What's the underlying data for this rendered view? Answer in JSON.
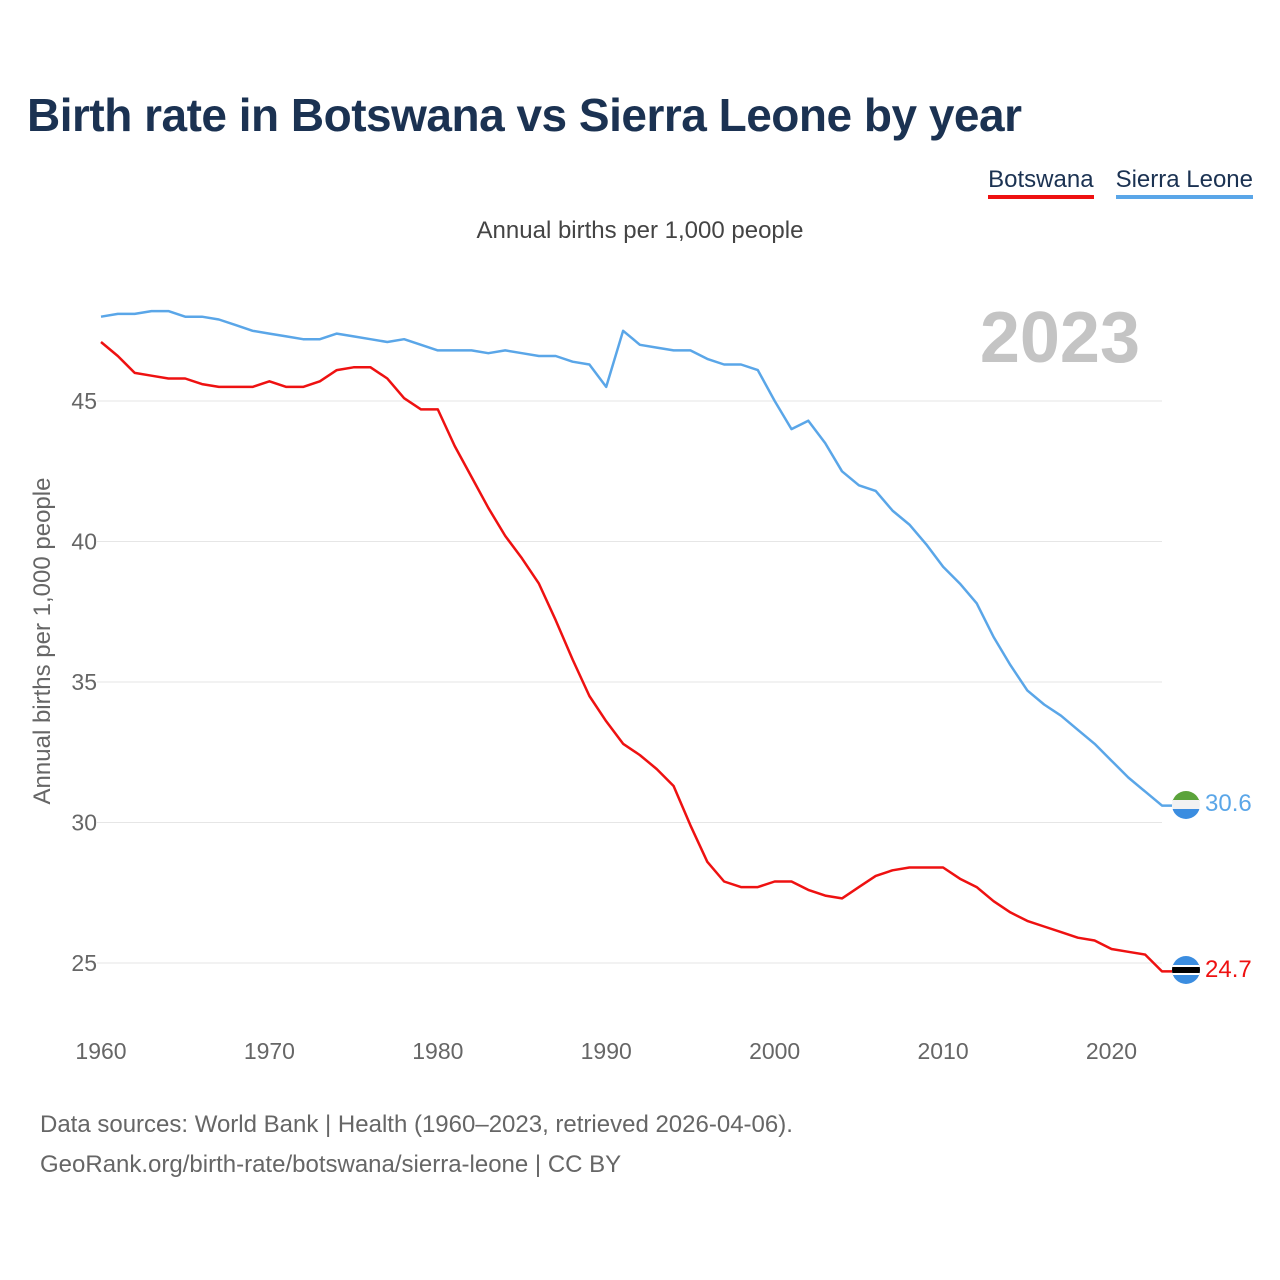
{
  "chart_data": {
    "type": "line",
    "title": "Birth rate in Botswana vs Sierra Leone by year",
    "subtitle": "Annual births per 1,000 people",
    "ylabel": "Annual births per 1,000 people",
    "xlabel": "",
    "xlim": [
      1960,
      2023
    ],
    "ylim": [
      23,
      49
    ],
    "y_ticks": [
      25,
      30,
      35,
      40,
      45
    ],
    "x_ticks": [
      1960,
      1970,
      1980,
      1990,
      2000,
      2010,
      2020
    ],
    "y_tick_labels": [
      "25",
      "30",
      "35",
      "40",
      "45"
    ],
    "x_tick_labels": [
      "1960",
      "1970",
      "1980",
      "1990",
      "2000",
      "2010",
      "2020"
    ],
    "current_year_label": "2023",
    "legend_position": "top-right",
    "grid": true,
    "x": [
      1960,
      1961,
      1962,
      1963,
      1964,
      1965,
      1966,
      1967,
      1968,
      1969,
      1970,
      1971,
      1972,
      1973,
      1974,
      1975,
      1976,
      1977,
      1978,
      1979,
      1980,
      1981,
      1982,
      1983,
      1984,
      1985,
      1986,
      1987,
      1988,
      1989,
      1990,
      1991,
      1992,
      1993,
      1994,
      1995,
      1996,
      1997,
      1998,
      1999,
      2000,
      2001,
      2002,
      2003,
      2004,
      2005,
      2006,
      2007,
      2008,
      2009,
      2010,
      2011,
      2012,
      2013,
      2014,
      2015,
      2016,
      2017,
      2018,
      2019,
      2020,
      2021,
      2022,
      2023
    ],
    "series": [
      {
        "name": "Botswana",
        "color": "#ee1111",
        "end_label": "24.7",
        "values": [
          47.1,
          46.6,
          46.0,
          45.9,
          45.8,
          45.8,
          45.6,
          45.5,
          45.5,
          45.5,
          45.7,
          45.5,
          45.5,
          45.7,
          46.1,
          46.2,
          46.2,
          45.8,
          45.1,
          44.7,
          44.7,
          43.4,
          42.3,
          41.2,
          40.2,
          39.4,
          38.5,
          37.2,
          35.8,
          34.5,
          33.6,
          32.8,
          32.4,
          31.9,
          31.3,
          29.9,
          28.6,
          27.9,
          27.7,
          27.7,
          27.9,
          27.9,
          27.6,
          27.4,
          27.3,
          27.7,
          28.1,
          28.3,
          28.4,
          28.4,
          28.4,
          28.0,
          27.7,
          27.2,
          26.8,
          26.5,
          26.3,
          26.1,
          25.9,
          25.8,
          25.5,
          25.4,
          25.3,
          24.7
        ]
      },
      {
        "name": "Sierra Leone",
        "color": "#5aa6e8",
        "end_label": "30.6",
        "values": [
          48.0,
          48.1,
          48.1,
          48.2,
          48.2,
          48.0,
          48.0,
          47.9,
          47.7,
          47.5,
          47.4,
          47.3,
          47.2,
          47.2,
          47.4,
          47.3,
          47.2,
          47.1,
          47.2,
          47.0,
          46.8,
          46.8,
          46.8,
          46.7,
          46.8,
          46.7,
          46.6,
          46.6,
          46.4,
          46.3,
          45.5,
          47.5,
          47.0,
          46.9,
          46.8,
          46.8,
          46.5,
          46.3,
          46.3,
          46.1,
          45.0,
          44.0,
          44.3,
          43.5,
          42.5,
          42.0,
          41.8,
          41.1,
          40.6,
          39.9,
          39.1,
          38.5,
          37.8,
          36.6,
          35.6,
          34.7,
          34.2,
          33.8,
          33.3,
          32.8,
          32.2,
          31.6,
          31.1,
          30.6
        ]
      }
    ]
  },
  "legend": {
    "botswana": "Botswana",
    "sierra_leone": "Sierra Leone"
  },
  "footer": {
    "line1": "Data sources: World Bank | Health (1960–2023, retrieved 2026-04-06).",
    "line2": "GeoRank.org/birth-rate/botswana/sierra-leone | CC BY"
  }
}
